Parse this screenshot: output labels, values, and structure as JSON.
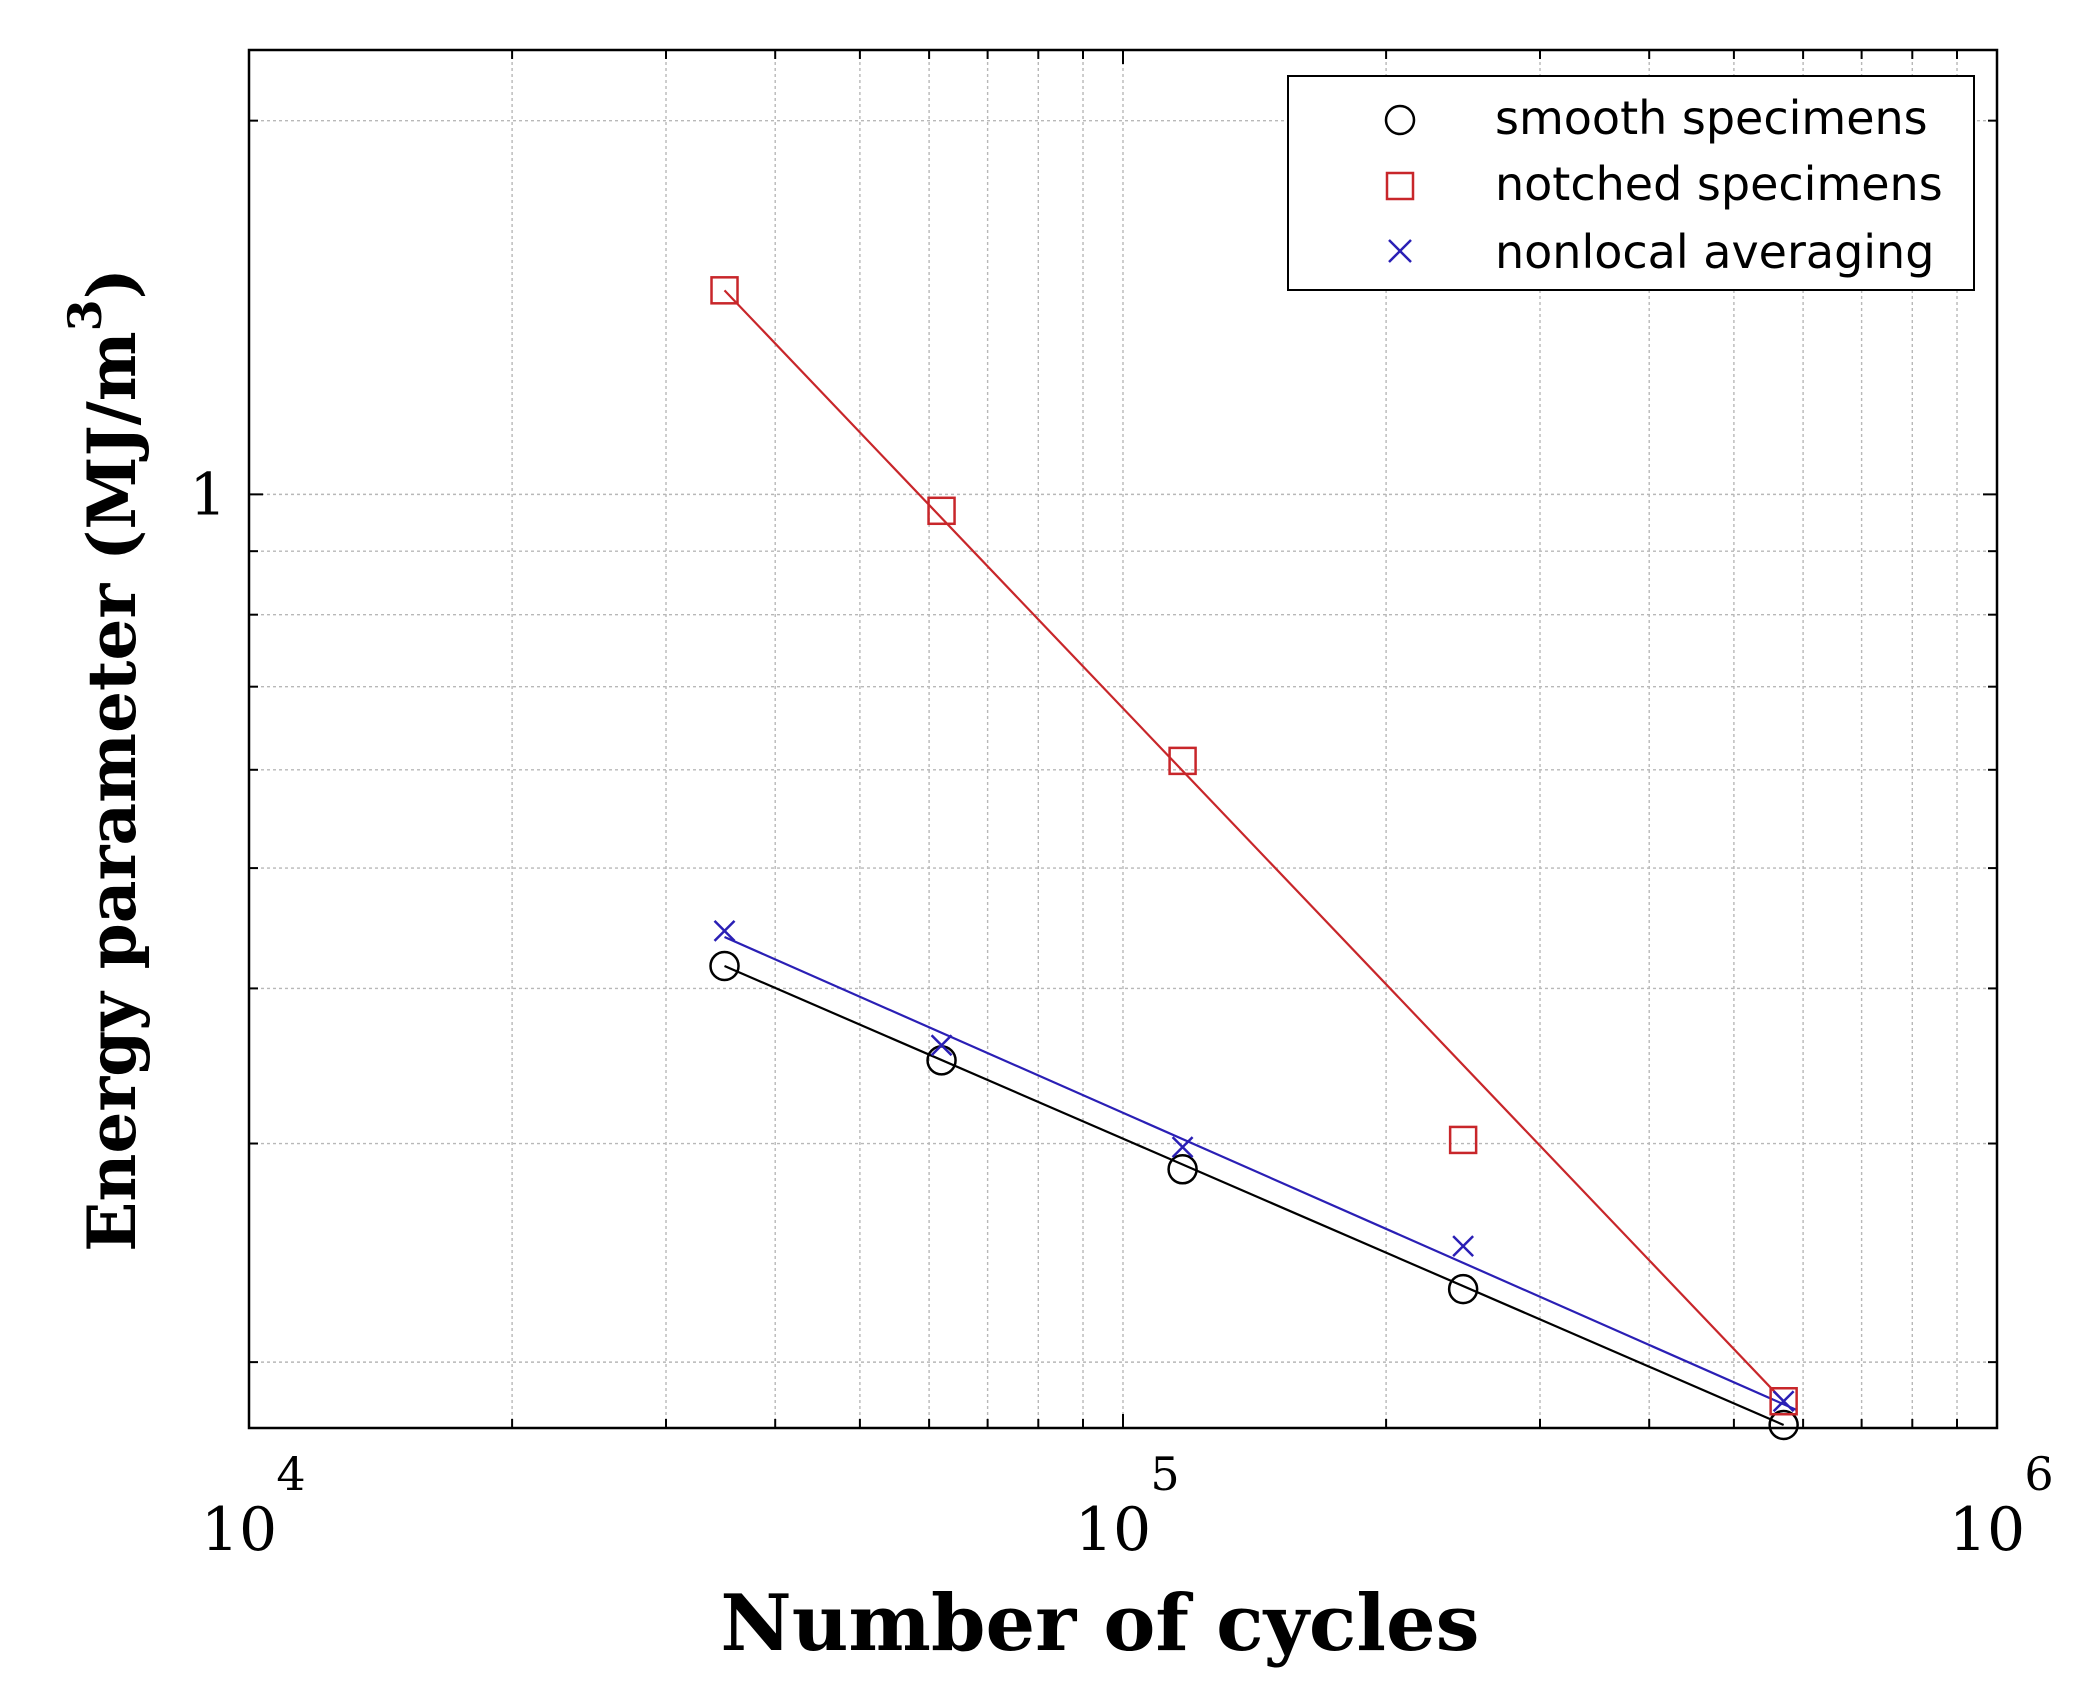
{
  "chart_data": {
    "type": "scatter",
    "x_scale": "log",
    "y_scale": "log",
    "xlabel": "Number of cycles",
    "ylabel": "Energy parameter (MJ/m",
    "ylabel_sup": "3",
    "ylabel_close": ")",
    "xlim": [
      10000,
      1000000
    ],
    "ylim": [
      0.177,
      2.28
    ],
    "grid": true,
    "legend_position": "top-right",
    "x_ticks": [
      {
        "base": "10",
        "exp": "4",
        "value": 10000
      },
      {
        "base": "10",
        "exp": "5",
        "value": 100000
      },
      {
        "base": "10",
        "exp": "6",
        "value": 1000000
      }
    ],
    "y_ticks": [
      {
        "label": "1",
        "value": 1
      }
    ],
    "series": [
      {
        "name": "smooth specimens",
        "marker": "circle",
        "color": "#000000",
        "x": [
          35000,
          62000,
          117000,
          245000,
          570000
        ],
        "y": [
          0.417,
          0.35,
          0.286,
          0.229,
          0.178
        ],
        "fit": {
          "x": [
            35000,
            570000
          ],
          "y": [
            0.417,
            0.178
          ]
        }
      },
      {
        "name": "notched specimens",
        "marker": "square",
        "color": "#c8262a",
        "x": [
          35000,
          62000,
          117000,
          245000,
          570000
        ],
        "y": [
          1.46,
          0.97,
          0.61,
          0.302,
          0.186
        ],
        "fit": {
          "x": [
            35000,
            570000
          ],
          "y": [
            1.46,
            0.186
          ]
        }
      },
      {
        "name": "nonlocal averaging",
        "marker": "x",
        "color": "#2a1fb5",
        "x": [
          35000,
          62000,
          117000,
          245000,
          570000
        ],
        "y": [
          0.445,
          0.36,
          0.298,
          0.248,
          0.186
        ],
        "fit": {
          "x": [
            35000,
            590000
          ],
          "y": [
            0.44,
            0.183
          ]
        }
      }
    ]
  }
}
